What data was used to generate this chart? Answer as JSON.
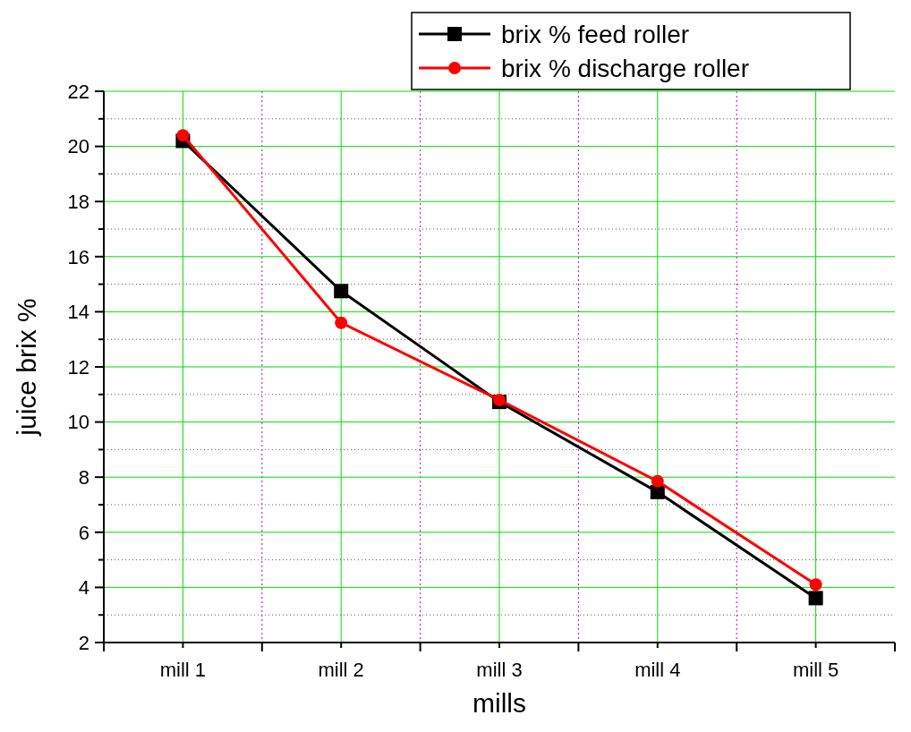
{
  "chart_data": {
    "type": "line",
    "xlabel": "mills",
    "ylabel": "juice brix %",
    "categories": [
      "mill 1",
      "mill 2",
      "mill 3",
      "mill 4",
      "mill 5"
    ],
    "series": [
      {
        "name": "brix % feed roller",
        "color": "#000000",
        "marker": "square",
        "values": [
          20.2,
          14.75,
          10.73,
          7.46,
          3.61
        ]
      },
      {
        "name": "brix % discharge roller",
        "color": "#ff0000",
        "marker": "circle",
        "values": [
          20.4,
          13.6,
          10.8,
          7.85,
          4.1
        ]
      }
    ],
    "ylim": [
      2,
      22
    ],
    "yticks": [
      2,
      4,
      6,
      8,
      10,
      12,
      14,
      16,
      18,
      20,
      22
    ],
    "grid": true,
    "legend": "top right",
    "line_style": "solid"
  }
}
